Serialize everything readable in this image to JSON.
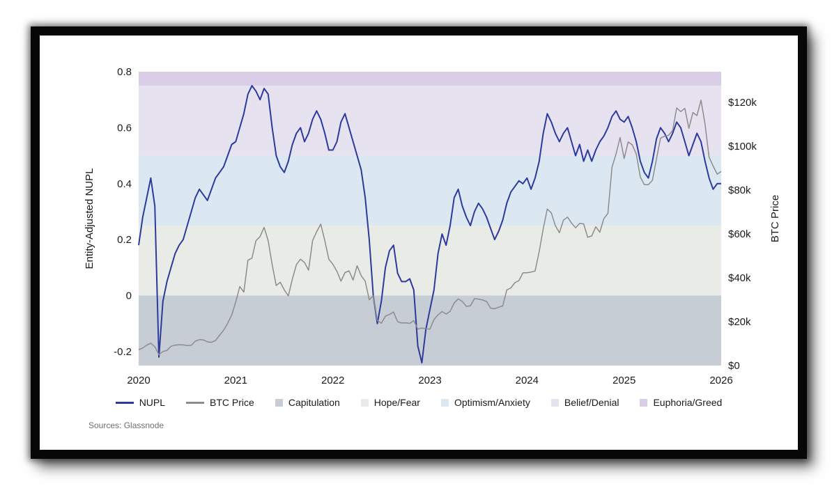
{
  "page": {
    "source_note": "Sources: Glassnode"
  },
  "chart_data": {
    "type": "line",
    "title": "",
    "y_left": {
      "label": "Entity-Adjusted NUPL",
      "min": -0.25,
      "max": 0.8,
      "tick_values": [
        0.8,
        0.6,
        0.4,
        0.2,
        0,
        -0.2
      ],
      "tick_labels": [
        "0.8",
        "0.6",
        "0.4",
        "0.2",
        "0",
        "-0.2"
      ]
    },
    "y_right": {
      "label": "BTC Price",
      "unit": "thousand USD",
      "min": 0,
      "max": 134,
      "tick_values": [
        120,
        100,
        80,
        60,
        40,
        20,
        0
      ],
      "tick_labels": [
        "$120k",
        "$100k",
        "$80k",
        "$60k",
        "$40k",
        "$20k",
        "$0"
      ]
    },
    "x": {
      "min": 2020,
      "max": 2026,
      "tick_values": [
        2020,
        2021,
        2022,
        2023,
        2024,
        2025,
        2026
      ],
      "tick_labels": [
        "2020",
        "2021",
        "2022",
        "2023",
        "2024",
        "2025",
        "2026"
      ]
    },
    "bands": [
      {
        "label": "Capitulation",
        "from": -0.25,
        "to": 0,
        "color": "#c7cdd5"
      },
      {
        "label": "Hope/Fear",
        "from": 0,
        "to": 0.25,
        "color": "#e9ebe6"
      },
      {
        "label": "Optimism/Anxiety",
        "from": 0.25,
        "to": 0.5,
        "color": "#dce8f1"
      },
      {
        "label": "Belief/Denial",
        "from": 0.5,
        "to": 0.75,
        "color": "#e7e2f0"
      },
      {
        "label": "Euphoria/Greed",
        "from": 0.75,
        "to": 0.8,
        "color": "#d9cde7"
      }
    ],
    "series": [
      {
        "name": "NUPL",
        "axis": "left",
        "color": "#2b3a9c",
        "x_start": 2020,
        "points_per_year": 24,
        "values": [
          0.18,
          0.28,
          0.35,
          0.42,
          0.32,
          -0.22,
          -0.02,
          0.05,
          0.1,
          0.15,
          0.18,
          0.2,
          0.25,
          0.3,
          0.35,
          0.38,
          0.36,
          0.34,
          0.38,
          0.42,
          0.44,
          0.46,
          0.5,
          0.54,
          0.55,
          0.6,
          0.65,
          0.72,
          0.75,
          0.73,
          0.7,
          0.74,
          0.72,
          0.6,
          0.5,
          0.46,
          0.44,
          0.48,
          0.54,
          0.58,
          0.6,
          0.55,
          0.58,
          0.63,
          0.66,
          0.63,
          0.58,
          0.52,
          0.52,
          0.55,
          0.62,
          0.65,
          0.6,
          0.55,
          0.5,
          0.45,
          0.35,
          0.2,
          0.0,
          -0.1,
          -0.02,
          0.1,
          0.16,
          0.18,
          0.08,
          0.05,
          0.05,
          0.06,
          0.02,
          -0.18,
          -0.24,
          -0.12,
          -0.05,
          0.02,
          0.15,
          0.22,
          0.18,
          0.25,
          0.35,
          0.38,
          0.32,
          0.28,
          0.25,
          0.3,
          0.33,
          0.31,
          0.28,
          0.24,
          0.2,
          0.23,
          0.27,
          0.33,
          0.37,
          0.39,
          0.41,
          0.4,
          0.42,
          0.38,
          0.42,
          0.48,
          0.58,
          0.65,
          0.62,
          0.58,
          0.55,
          0.58,
          0.6,
          0.55,
          0.5,
          0.54,
          0.48,
          0.52,
          0.48,
          0.52,
          0.55,
          0.57,
          0.6,
          0.64,
          0.66,
          0.63,
          0.62,
          0.64,
          0.6,
          0.55,
          0.48,
          0.44,
          0.42,
          0.48,
          0.56,
          0.6,
          0.58,
          0.55,
          0.58,
          0.62,
          0.6,
          0.55,
          0.5,
          0.54,
          0.58,
          0.55,
          0.48,
          0.42,
          0.38,
          0.4,
          0.4
        ]
      },
      {
        "name": "BTC Price",
        "axis": "right",
        "color": "#8c8c8c",
        "unit": "thousand USD",
        "x_start": 2020,
        "points_per_year": 24,
        "values": [
          7.2,
          8.0,
          9.3,
          10.2,
          8.6,
          5.0,
          6.4,
          6.9,
          8.8,
          9.3,
          9.5,
          9.4,
          9.1,
          9.2,
          11.1,
          11.8,
          11.7,
          10.8,
          10.6,
          11.4,
          13.8,
          16.1,
          19.2,
          23.0,
          29.0,
          36.0,
          33.5,
          48.0,
          49.0,
          57.0,
          58.8,
          63.0,
          57.0,
          46.0,
          36.5,
          38.0,
          34.5,
          31.8,
          39.5,
          46.0,
          48.5,
          47.0,
          43.5,
          57.0,
          61.0,
          64.5,
          57.0,
          48.5,
          46.2,
          43.0,
          38.5,
          42.4,
          43.2,
          39.0,
          45.5,
          41.0,
          38.5,
          30.0,
          31.8,
          20.5,
          19.3,
          22.5,
          23.3,
          24.4,
          20.0,
          19.4,
          19.5,
          19.2,
          20.5,
          16.6,
          17.1,
          16.8,
          16.6,
          21.0,
          23.1,
          24.6,
          23.5,
          24.7,
          28.5,
          30.4,
          29.2,
          27.0,
          27.2,
          30.5,
          30.3,
          29.9,
          29.2,
          26.1,
          25.9,
          26.6,
          27.2,
          34.5,
          35.4,
          37.8,
          38.7,
          42.3,
          42.3,
          42.6,
          43.1,
          52.0,
          62.4,
          71.4,
          69.6,
          63.8,
          60.6,
          66.3,
          67.7,
          65.0,
          62.8,
          64.8,
          64.6,
          58.5,
          59.1,
          63.3,
          60.8,
          67.0,
          69.4,
          90.5,
          96.5,
          104.0,
          94.4,
          102.0,
          100.7,
          96.5,
          86.0,
          82.5,
          82.5,
          84.5,
          94.2,
          103.7,
          104.6,
          105.0,
          107.2,
          117.5,
          115.8,
          117.3,
          108.2,
          115.4,
          114.0,
          121.0,
          110.1,
          95.0,
          91.0,
          87.3,
          88.5
        ]
      }
    ],
    "legend": [
      {
        "label": "NUPL",
        "type": "line",
        "color": "#2b3a9c"
      },
      {
        "label": "BTC Price",
        "type": "line",
        "color": "#8c8c8c"
      },
      {
        "label": "Capitulation",
        "type": "square",
        "color": "#c7cdd5"
      },
      {
        "label": "Hope/Fear",
        "type": "square",
        "color": "#e9ebe6"
      },
      {
        "label": "Optimism/Anxiety",
        "type": "square",
        "color": "#dce8f1"
      },
      {
        "label": "Belief/Denial",
        "type": "square",
        "color": "#e7e2f0"
      },
      {
        "label": "Euphoria/Greed",
        "type": "square",
        "color": "#d9cde7"
      }
    ]
  }
}
